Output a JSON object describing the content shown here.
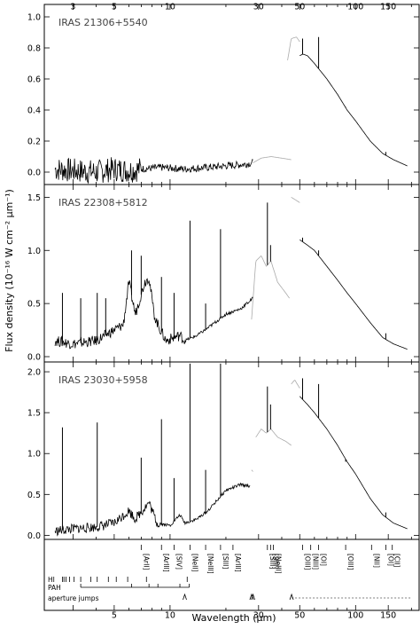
{
  "chart_data": {
    "type": "line",
    "xlabel": "Wavelength (μm)",
    "ylabel": "Flux density (10⁻¹⁶ W cm⁻² μm⁻¹)",
    "xscale": "log",
    "xlim": [
      2.1,
      220
    ],
    "x_ticks_top": [
      "3",
      "5",
      "10",
      "30",
      "50",
      "100",
      "150"
    ],
    "x_ticks_bottom": [
      "5",
      "10",
      "30",
      "50",
      "100",
      "150"
    ],
    "panels": [
      {
        "title": "IRAS 21306+5540",
        "ylim": [
          -0.08,
          1.08
        ],
        "yticks": [
          "0.0",
          "0.2",
          "0.4",
          "0.6",
          "0.8",
          "1.0"
        ],
        "series": [
          {
            "color": "#000000",
            "points": [
              [
                2.4,
                0.02
              ],
              [
                3,
                0.01
              ],
              [
                4,
                0.0
              ],
              [
                5,
                0.02
              ],
              [
                6,
                0.01
              ],
              [
                7,
                0.02
              ],
              [
                9,
                0.03
              ],
              [
                12,
                0.02
              ],
              [
                16,
                0.03
              ],
              [
                20,
                0.04
              ],
              [
                25,
                0.05
              ],
              [
                28,
                0.06
              ]
            ],
            "noise": 0.08,
            "noise_until": 7
          },
          {
            "color": "#aaaaaa",
            "points": [
              [
                28,
                0.06
              ],
              [
                31,
                0.09
              ],
              [
                35,
                0.1
              ],
              [
                40,
                0.09
              ],
              [
                45,
                0.08
              ]
            ]
          },
          {
            "color": "#aaaaaa",
            "points": [
              [
                43,
                0.72
              ],
              [
                45,
                0.86
              ],
              [
                48,
                0.87
              ],
              [
                50,
                0.84
              ]
            ]
          },
          {
            "color": "#000000",
            "points": [
              [
                50,
                0.75
              ],
              [
                52,
                0.76
              ],
              [
                55,
                0.75
              ],
              [
                60,
                0.7
              ],
              [
                70,
                0.6
              ],
              [
                80,
                0.5
              ],
              [
                90,
                0.4
              ],
              [
                100,
                0.33
              ],
              [
                120,
                0.2
              ],
              [
                140,
                0.12
              ],
              [
                160,
                0.08
              ],
              [
                190,
                0.04
              ]
            ]
          }
        ],
        "spikes": [
          {
            "x": 51.8,
            "y": 0.86
          },
          {
            "x": 63.2,
            "y": 0.87
          },
          {
            "x": 88.4,
            "y": 0.42
          },
          {
            "x": 145.5,
            "y": 0.13
          }
        ]
      },
      {
        "title": "IRAS 22308+5812",
        "ylim": [
          -0.05,
          1.62
        ],
        "yticks": [
          "0.0",
          "0.5",
          "1.0",
          "1.5"
        ],
        "series": [
          {
            "color": "#000000",
            "points": [
              [
                2.4,
                0.15
              ],
              [
                3,
                0.12
              ],
              [
                4,
                0.15
              ],
              [
                5,
                0.25
              ],
              [
                5.6,
                0.3
              ],
              [
                6,
                0.7
              ],
              [
                6.5,
                0.4
              ],
              [
                7.3,
                0.7
              ],
              [
                7.7,
                0.75
              ],
              [
                8.2,
                0.4
              ],
              [
                8.6,
                0.3
              ],
              [
                9.5,
                0.15
              ],
              [
                11.3,
                0.2
              ],
              [
                12,
                0.15
              ],
              [
                14,
                0.2
              ],
              [
                16,
                0.27
              ],
              [
                20,
                0.4
              ],
              [
                24,
                0.45
              ],
              [
                28,
                0.55
              ]
            ],
            "noise": 0.05,
            "noise_until": 12
          },
          {
            "color": "#aaaaaa",
            "points": [
              [
                27.5,
                0.35
              ],
              [
                29,
                0.9
              ],
              [
                31,
                0.95
              ],
              [
                33,
                0.85
              ],
              [
                35,
                0.9
              ],
              [
                38,
                0.7
              ],
              [
                42,
                0.6
              ],
              [
                44,
                0.55
              ]
            ]
          },
          {
            "color": "#aaaaaa",
            "points": [
              [
                45,
                1.5
              ],
              [
                47,
                1.48
              ],
              [
                50,
                1.45
              ]
            ]
          },
          {
            "color": "#000000",
            "points": [
              [
                50,
                1.1
              ],
              [
                55,
                1.05
              ],
              [
                60,
                1.0
              ],
              [
                70,
                0.85
              ],
              [
                80,
                0.72
              ],
              [
                90,
                0.6
              ],
              [
                100,
                0.5
              ],
              [
                120,
                0.32
              ],
              [
                140,
                0.18
              ],
              [
                160,
                0.12
              ],
              [
                190,
                0.07
              ]
            ]
          }
        ],
        "spikes": [
          {
            "x": 2.63,
            "y": 0.6
          },
          {
            "x": 3.3,
            "y": 0.55
          },
          {
            "x": 4.05,
            "y": 0.6
          },
          {
            "x": 4.5,
            "y": 0.55
          },
          {
            "x": 6.2,
            "y": 1.0
          },
          {
            "x": 6.99,
            "y": 0.95
          },
          {
            "x": 8.99,
            "y": 0.75
          },
          {
            "x": 10.51,
            "y": 0.6
          },
          {
            "x": 12.81,
            "y": 1.28
          },
          {
            "x": 15.55,
            "y": 0.5
          },
          {
            "x": 18.71,
            "y": 1.2
          },
          {
            "x": 33.48,
            "y": 1.45
          },
          {
            "x": 34.81,
            "y": 1.05
          },
          {
            "x": 51.8,
            "y": 1.12
          },
          {
            "x": 63.2,
            "y": 1.0
          },
          {
            "x": 145.5,
            "y": 0.22
          }
        ]
      },
      {
        "title": "IRAS 23030+5958",
        "ylim": [
          -0.05,
          2.12
        ],
        "yticks": [
          "0.0",
          "0.5",
          "1.0",
          "1.5",
          "2.0"
        ],
        "series": [
          {
            "color": "#000000",
            "points": [
              [
                2.4,
                0.05
              ],
              [
                3,
                0.08
              ],
              [
                4,
                0.1
              ],
              [
                5,
                0.15
              ],
              [
                6,
                0.3
              ],
              [
                6.5,
                0.2
              ],
              [
                7.7,
                0.4
              ],
              [
                8.5,
                0.15
              ],
              [
                10,
                0.12
              ],
              [
                11.3,
                0.25
              ],
              [
                12,
                0.15
              ],
              [
                14,
                0.2
              ],
              [
                16,
                0.3
              ],
              [
                20,
                0.55
              ],
              [
                24,
                0.62
              ],
              [
                27,
                0.6
              ]
            ],
            "noise": 0.06,
            "noise_until": 9
          },
          {
            "color": "#aaaaaa",
            "points": [
              [
                27.5,
                0.8
              ],
              [
                28,
                0.78
              ]
            ]
          },
          {
            "color": "#aaaaaa",
            "points": [
              [
                29,
                1.2
              ],
              [
                31,
                1.3
              ],
              [
                33,
                1.25
              ],
              [
                35,
                1.3
              ],
              [
                38,
                1.2
              ],
              [
                42,
                1.15
              ],
              [
                45,
                1.1
              ]
            ]
          },
          {
            "color": "#aaaaaa",
            "points": [
              [
                45,
                1.85
              ],
              [
                47,
                1.9
              ],
              [
                50,
                1.8
              ]
            ]
          },
          {
            "color": "#000000",
            "points": [
              [
                50,
                1.7
              ],
              [
                55,
                1.6
              ],
              [
                60,
                1.5
              ],
              [
                70,
                1.3
              ],
              [
                80,
                1.1
              ],
              [
                90,
                0.9
              ],
              [
                100,
                0.75
              ],
              [
                120,
                0.45
              ],
              [
                140,
                0.25
              ],
              [
                160,
                0.15
              ],
              [
                190,
                0.08
              ]
            ]
          }
        ],
        "spikes": [
          {
            "x": 2.63,
            "y": 1.32
          },
          {
            "x": 4.05,
            "y": 1.38
          },
          {
            "x": 6.99,
            "y": 0.95
          },
          {
            "x": 8.99,
            "y": 1.42
          },
          {
            "x": 10.51,
            "y": 0.7
          },
          {
            "x": 12.81,
            "y": 2.1
          },
          {
            "x": 15.55,
            "y": 0.8
          },
          {
            "x": 18.71,
            "y": 2.1
          },
          {
            "x": 33.48,
            "y": 1.82
          },
          {
            "x": 34.81,
            "y": 1.6
          },
          {
            "x": 51.8,
            "y": 1.92
          },
          {
            "x": 63.2,
            "y": 1.85
          },
          {
            "x": 88.4,
            "y": 0.9
          },
          {
            "x": 145.5,
            "y": 0.28
          }
        ]
      }
    ],
    "line_ids": [
      {
        "label": "[ArII]",
        "x": 6.99
      },
      {
        "label": "[ArIII]",
        "x": 8.99
      },
      {
        "label": "[SIV]",
        "x": 10.51
      },
      {
        "label": "[NeII]",
        "x": 12.81
      },
      {
        "label": "[NeIII]",
        "x": 15.55
      },
      {
        "label": "[SIII]",
        "x": 18.71
      },
      {
        "label": "[ArIII]",
        "x": 21.83
      },
      {
        "label": "[SIII]",
        "x": 33.48
      },
      {
        "label": "[SiII]",
        "x": 34.81
      },
      {
        "label": "[NeIII]",
        "x": 36.01
      },
      {
        "label": "[OIII]",
        "x": 51.8
      },
      {
        "label": "[NIII]",
        "x": 57.3
      },
      {
        "label": "[OI]",
        "x": 63.2
      },
      {
        "label": "[OIII]",
        "x": 88.4
      },
      {
        "label": "[NII]",
        "x": 121.9
      },
      {
        "label": "[OI]",
        "x": 145.5
      },
      {
        "label": "[CII]",
        "x": 157.7
      }
    ],
    "hi_label": "HI",
    "hi_lines": [
      2.63,
      2.68,
      2.75,
      2.87,
      3.04,
      3.3,
      3.74,
      4.05,
      4.65,
      5.13,
      5.91,
      7.46,
      12.37
    ],
    "pah_label": "PAH",
    "pah_lines": [
      3.3,
      6.2,
      7.7,
      8.6,
      11.3,
      12.7
    ],
    "aperture_label": "aperture jumps",
    "aperture_jumps": [
      12.0,
      27.5,
      28.0,
      45.2
    ]
  }
}
